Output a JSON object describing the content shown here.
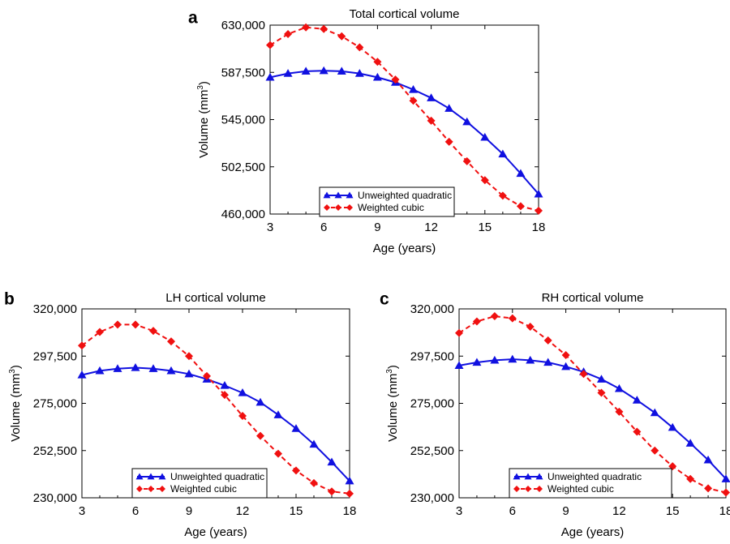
{
  "colors": {
    "unweighted": "#1010e0",
    "weighted": "#f01010"
  },
  "chart_data": [
    {
      "panel": "a",
      "type": "line",
      "title": "Total cortical volume",
      "xlabel": "Age (years)",
      "ylabel_main": "Volume (mm",
      "ylabel_sup": "3",
      "ylabel_close": ")",
      "xlim": [
        3,
        18
      ],
      "ylim": [
        460000,
        630000
      ],
      "xticks": [
        3,
        6,
        9,
        12,
        15,
        18
      ],
      "yticks": [
        460000,
        502500,
        545000,
        587500,
        630000
      ],
      "ytick_labels": [
        "460,000",
        "502,500",
        "545,000",
        "587,500",
        "630,000"
      ],
      "x": [
        3,
        4,
        5,
        6,
        7,
        8,
        9,
        10,
        11,
        12,
        13,
        14,
        15,
        16,
        17,
        18
      ],
      "series": [
        {
          "name": "Unweighted quadratic",
          "marker": "triangle",
          "style": "solid",
          "values": [
            583000,
            586500,
            588500,
            589000,
            588500,
            586500,
            583000,
            578500,
            572000,
            564500,
            555000,
            543000,
            529000,
            514000,
            496500,
            478000
          ]
        },
        {
          "name": "Weighted cubic",
          "marker": "diamond",
          "style": "dashed",
          "values": [
            612000,
            622000,
            628000,
            626500,
            620000,
            610000,
            597000,
            581000,
            562000,
            544000,
            525000,
            507500,
            490500,
            476500,
            467000,
            463000
          ]
        }
      ]
    },
    {
      "panel": "b",
      "type": "line",
      "title": "LH cortical volume",
      "xlabel": "Age (years)",
      "ylabel_main": "Volume (mm",
      "ylabel_sup": "3",
      "ylabel_close": ")",
      "xlim": [
        3,
        18
      ],
      "ylim": [
        230000,
        320000
      ],
      "xticks": [
        3,
        6,
        9,
        12,
        15,
        18
      ],
      "yticks": [
        230000,
        252500,
        275000,
        297500,
        320000
      ],
      "ytick_labels": [
        "230,000",
        "252,500",
        "275,000",
        "297,500",
        "320,000"
      ],
      "x": [
        3,
        4,
        5,
        6,
        7,
        8,
        9,
        10,
        11,
        12,
        13,
        14,
        15,
        16,
        17,
        18
      ],
      "series": [
        {
          "name": "Unweighted quadratic",
          "marker": "triangle",
          "style": "solid",
          "values": [
            288500,
            290500,
            291500,
            292000,
            291500,
            290500,
            289000,
            286500,
            283500,
            280000,
            275500,
            269500,
            263000,
            255500,
            247000,
            238000
          ]
        },
        {
          "name": "Weighted cubic",
          "marker": "diamond",
          "style": "dashed",
          "values": [
            302500,
            309000,
            312500,
            312500,
            309500,
            304500,
            297500,
            288000,
            279000,
            269000,
            259500,
            251000,
            243000,
            237000,
            233000,
            232000
          ]
        }
      ]
    },
    {
      "panel": "c",
      "type": "line",
      "title": "RH cortical volume",
      "xlabel": "Age (years)",
      "ylabel_main": "Volume (mm",
      "ylabel_sup": "3",
      "ylabel_close": ")",
      "xlim": [
        3,
        18
      ],
      "ylim": [
        230000,
        320000
      ],
      "xticks": [
        3,
        6,
        9,
        12,
        15,
        18
      ],
      "yticks": [
        230000,
        252500,
        275000,
        297500,
        320000
      ],
      "ytick_labels": [
        "230,000",
        "252,500",
        "275,000",
        "297,500",
        "320,000"
      ],
      "x": [
        3,
        4,
        5,
        6,
        7,
        8,
        9,
        10,
        11,
        12,
        13,
        14,
        15,
        16,
        17,
        18
      ],
      "series": [
        {
          "name": "Unweighted quadratic",
          "marker": "triangle",
          "style": "solid",
          "values": [
            293000,
            294500,
            295500,
            296000,
            295500,
            294500,
            292500,
            290000,
            286500,
            282000,
            276500,
            270500,
            263500,
            256000,
            248000,
            239000
          ]
        },
        {
          "name": "Weighted cubic",
          "marker": "diamond",
          "style": "dashed",
          "values": [
            308500,
            314000,
            316500,
            315500,
            311500,
            305000,
            298000,
            289000,
            280000,
            271000,
            261500,
            252500,
            245000,
            239000,
            234500,
            232500
          ]
        }
      ]
    }
  ]
}
